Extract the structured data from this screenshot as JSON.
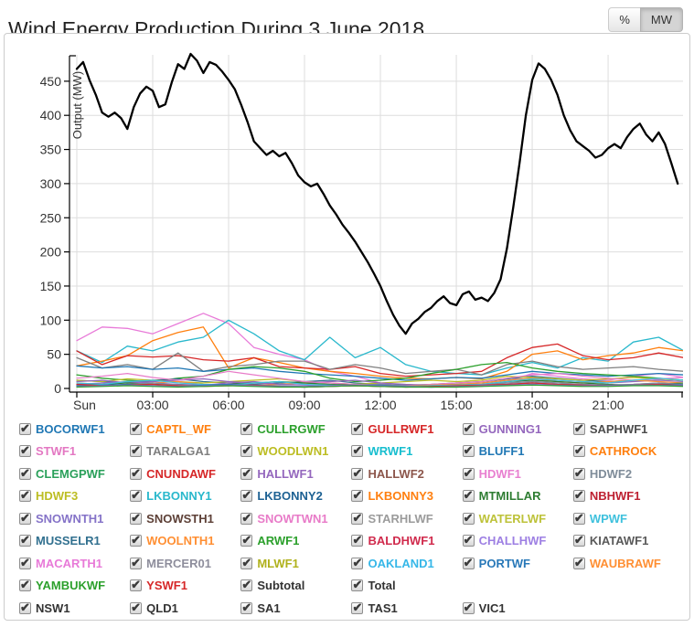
{
  "header": {
    "title": "Wind Energy Production During 3 June 2018",
    "unit_toggle": {
      "options": [
        "%",
        "MW"
      ],
      "selected": "MW"
    }
  },
  "chart_data": {
    "type": "line",
    "title": "Wind Energy Production During 3 June 2018",
    "xlabel": "",
    "ylabel": "Output (MW)",
    "ylim": [
      0,
      500
    ],
    "yticks": [
      0,
      50,
      100,
      150,
      200,
      250,
      300,
      350,
      400,
      450
    ],
    "xticks": [
      {
        "label": "Sun",
        "hour": 0
      },
      {
        "label": "03:00",
        "hour": 3
      },
      {
        "label": "06:00",
        "hour": 6
      },
      {
        "label": "09:00",
        "hour": 9
      },
      {
        "label": "12:00",
        "hour": 12
      },
      {
        "label": "15:00",
        "hour": 15
      },
      {
        "label": "18:00",
        "hour": 18
      },
      {
        "label": "21:00",
        "hour": 21
      }
    ],
    "xlim_hours": [
      0,
      24
    ],
    "grid": true,
    "legend_position": "checkbox grid below chart",
    "series": [
      {
        "name": "MACARTH1",
        "color": "#e87ad8",
        "width": 1.3,
        "x_start": 0,
        "x_step": 1,
        "values": [
          70,
          90,
          88,
          80,
          95,
          110,
          95,
          60,
          50,
          42,
          25,
          18,
          8,
          2,
          2,
          2,
          3,
          10,
          22,
          18,
          14,
          12,
          18,
          22,
          16
        ]
      },
      {
        "name": "LKBONNY1",
        "color": "#29b8cc",
        "width": 1.3,
        "x_start": 0,
        "x_step": 1,
        "values": [
          55,
          38,
          62,
          55,
          68,
          75,
          100,
          80,
          55,
          42,
          75,
          45,
          60,
          35,
          25,
          22,
          20,
          30,
          38,
          30,
          45,
          40,
          68,
          75,
          55
        ]
      },
      {
        "name": "CAPTL_WF",
        "color": "#ff7f0e",
        "width": 1.3,
        "x_start": 0,
        "x_step": 1,
        "values": [
          33,
          40,
          48,
          70,
          82,
          90,
          30,
          45,
          38,
          30,
          25,
          22,
          18,
          15,
          14,
          16,
          14,
          25,
          50,
          55,
          42,
          48,
          52,
          60,
          55
        ]
      },
      {
        "name": "GULLRWF1",
        "color": "#d62728",
        "width": 1.3,
        "x_start": 0,
        "x_step": 1,
        "values": [
          55,
          35,
          48,
          46,
          48,
          42,
          40,
          45,
          32,
          30,
          28,
          32,
          22,
          18,
          20,
          22,
          25,
          45,
          60,
          65,
          48,
          42,
          45,
          52,
          45
        ]
      },
      {
        "name": "TARALGA1",
        "color": "#7f7f7f",
        "width": 1.3,
        "x_start": 0,
        "x_step": 1,
        "values": [
          45,
          30,
          35,
          28,
          52,
          25,
          32,
          35,
          40,
          40,
          28,
          35,
          30,
          22,
          25,
          28,
          20,
          35,
          40,
          32,
          28,
          30,
          32,
          28,
          25
        ]
      },
      {
        "name": "BOCORWF1",
        "color": "#1f77b4",
        "width": 1.3,
        "x_start": 0,
        "x_step": 1,
        "values": [
          33,
          30,
          32,
          28,
          30,
          25,
          28,
          30,
          25,
          22,
          20,
          18,
          15,
          12,
          14,
          16,
          15,
          20,
          25,
          22,
          20,
          18,
          20,
          22,
          20
        ]
      },
      {
        "name": "ARWF1",
        "color": "#2ca02c",
        "width": 1.3,
        "x_start": 0,
        "x_step": 1,
        "values": [
          20,
          15,
          12,
          10,
          15,
          18,
          28,
          32,
          30,
          25,
          15,
          10,
          12,
          15,
          22,
          28,
          35,
          38,
          30,
          25,
          22,
          20,
          18,
          15,
          12
        ]
      },
      {
        "name": "MUSSELR1",
        "color": "#31708f",
        "width": 1.2,
        "x_start": 0,
        "x_step": 1,
        "values": [
          12,
          10,
          8,
          12,
          14,
          10,
          8,
          6,
          8,
          10,
          12,
          8,
          6,
          5,
          6,
          8,
          10,
          14,
          18,
          15,
          12,
          10,
          12,
          14,
          12
        ]
      },
      {
        "name": "WOODLWN1",
        "color": "#bcbd22",
        "width": 1.2,
        "x_start": 0,
        "x_step": 1,
        "values": [
          12,
          10,
          14,
          12,
          10,
          8,
          10,
          12,
          14,
          10,
          8,
          6,
          8,
          10,
          12,
          10,
          12,
          18,
          16,
          14,
          12,
          14,
          16,
          14,
          12
        ]
      },
      {
        "name": "GUNNING1",
        "color": "#9467bd",
        "width": 1.2,
        "x_start": 0,
        "x_step": 1,
        "values": [
          10,
          12,
          8,
          10,
          12,
          14,
          10,
          8,
          6,
          8,
          10,
          12,
          8,
          6,
          5,
          6,
          8,
          12,
          15,
          12,
          10,
          8,
          10,
          12,
          10
        ]
      },
      {
        "name": "SNOWTWN1",
        "color": "#e87bc8",
        "width": 1.2,
        "x_start": 0,
        "x_step": 1,
        "values": [
          15,
          18,
          22,
          16,
          12,
          18,
          25,
          20,
          15,
          10,
          8,
          6,
          5,
          4,
          6,
          8,
          10,
          15,
          20,
          22,
          18,
          15,
          12,
          14,
          16
        ]
      },
      {
        "name": "WOOLNTH1",
        "color": "#ff8f33",
        "width": 1.2,
        "x_start": 0,
        "x_step": 1,
        "values": [
          8,
          6,
          5,
          8,
          10,
          6,
          5,
          4,
          6,
          8,
          5,
          4,
          3,
          4,
          5,
          6,
          8,
          12,
          15,
          10,
          8,
          10,
          12,
          10,
          8
        ]
      },
      {
        "name": "HALLWF1",
        "color": "#9467bd",
        "width": 1.2,
        "x_start": 0,
        "x_step": 1,
        "values": [
          6,
          8,
          10,
          8,
          6,
          5,
          8,
          10,
          6,
          5,
          4,
          5,
          6,
          4,
          3,
          4,
          5,
          8,
          10,
          8,
          6,
          5,
          6,
          8,
          6
        ]
      },
      {
        "name": "MTMILLAR",
        "color": "#2e7d32",
        "width": 1.2,
        "x_start": 0,
        "x_step": 1,
        "values": [
          5,
          6,
          8,
          6,
          5,
          4,
          6,
          8,
          10,
          8,
          6,
          5,
          4,
          3,
          4,
          5,
          6,
          10,
          12,
          10,
          8,
          6,
          5,
          6,
          8
        ]
      },
      {
        "name": "WPWF",
        "color": "#3fc1dd",
        "width": 1.2,
        "x_start": 0,
        "x_step": 1,
        "values": [
          8,
          6,
          10,
          12,
          8,
          6,
          5,
          8,
          10,
          6,
          5,
          4,
          3,
          3,
          4,
          5,
          6,
          10,
          14,
          12,
          10,
          8,
          12,
          15,
          12
        ]
      },
      {
        "name": "HDWF2",
        "color": "#7f8c99",
        "width": 1.2,
        "x_start": 0,
        "x_step": 1,
        "values": [
          5,
          4,
          6,
          8,
          5,
          4,
          6,
          5,
          4,
          3,
          4,
          5,
          6,
          4,
          3,
          4,
          5,
          8,
          10,
          8,
          6,
          5,
          6,
          8,
          6
        ]
      },
      {
        "name": "BLUFF1",
        "color": "#1f77b4",
        "width": 1.2,
        "x_start": 0,
        "x_step": 1,
        "values": [
          4,
          5,
          6,
          4,
          3,
          5,
          6,
          4,
          3,
          2,
          3,
          4,
          5,
          3,
          2,
          3,
          4,
          6,
          8,
          6,
          5,
          4,
          5,
          6,
          5
        ]
      },
      {
        "name": "CNUNDAWF",
        "color": "#d62728",
        "width": 1.2,
        "x_start": 0,
        "x_step": 1,
        "values": [
          6,
          4,
          5,
          6,
          4,
          3,
          4,
          5,
          3,
          2,
          3,
          4,
          3,
          2,
          3,
          4,
          5,
          6,
          8,
          6,
          5,
          4,
          5,
          6,
          4
        ]
      },
      {
        "name": "SNOWNTH1",
        "color": "#8573c8",
        "width": 1.2,
        "x_start": 0,
        "x_step": 1,
        "values": [
          3,
          4,
          5,
          4,
          3,
          4,
          5,
          4,
          3,
          3,
          4,
          5,
          4,
          3,
          2,
          3,
          4,
          5,
          6,
          5,
          4,
          4,
          5,
          5,
          4
        ]
      },
      {
        "name": "YAMBUKWF",
        "color": "#2ca02c",
        "width": 1.2,
        "x_start": 0,
        "x_step": 1,
        "values": [
          2,
          3,
          4,
          3,
          2,
          3,
          4,
          3,
          2,
          2,
          3,
          4,
          3,
          2,
          2,
          2,
          3,
          4,
          5,
          4,
          3,
          3,
          4,
          4,
          3
        ]
      },
      {
        "name": "Total",
        "color": "#000000",
        "width": 2.3,
        "x_start": 0,
        "x_step": 0.25,
        "values": [
          468,
          478,
          452,
          430,
          404,
          398,
          404,
          396,
          380,
          412,
          432,
          442,
          436,
          412,
          416,
          448,
          475,
          468,
          490,
          480,
          462,
          478,
          474,
          464,
          452,
          438,
          415,
          390,
          362,
          352,
          342,
          348,
          340,
          345,
          330,
          312,
          302,
          296,
          300,
          285,
          268,
          255,
          240,
          228,
          215,
          200,
          185,
          168,
          150,
          128,
          108,
          92,
          80,
          95,
          102,
          112,
          118,
          128,
          135,
          125,
          122,
          138,
          142,
          130,
          133,
          128,
          140,
          160,
          205,
          265,
          330,
          400,
          452,
          476,
          468,
          452,
          430,
          400,
          378,
          362,
          355,
          348,
          338,
          342,
          352,
          358,
          352,
          368,
          380,
          388,
          372,
          362,
          375,
          358,
          330,
          300
        ]
      }
    ]
  },
  "legend": {
    "rows": [
      {
        "items": [
          {
            "label": "BOCORWF1",
            "color": "#1f77b4",
            "checked": true
          },
          {
            "label": "CAPTL_WF",
            "color": "#ff7f0e",
            "checked": true
          },
          {
            "label": "CULLRGWF",
            "color": "#2ca02c",
            "checked": true
          },
          {
            "label": "GULLRWF1",
            "color": "#d62728",
            "checked": true
          },
          {
            "label": "GUNNING1",
            "color": "#9467bd",
            "checked": true
          },
          {
            "label": "SAPHWF1",
            "color": "#4d4d4d",
            "checked": true
          }
        ]
      },
      {
        "items": [
          {
            "label": "STWF1",
            "color": "#e377c2",
            "checked": true
          },
          {
            "label": "TARALGA1",
            "color": "#7f7f7f",
            "checked": true
          },
          {
            "label": "WOODLWN1",
            "color": "#bcbd22",
            "checked": true
          },
          {
            "label": "WRWF1",
            "color": "#17becf",
            "checked": true
          },
          {
            "label": "BLUFF1",
            "color": "#1f77b4",
            "checked": true
          },
          {
            "label": "CATHROCK",
            "color": "#ff7f0e",
            "checked": true
          }
        ]
      },
      {
        "items": [
          {
            "label": "CLEMGPWF",
            "color": "#2aa05a",
            "checked": true
          },
          {
            "label": "CNUNDAWF",
            "color": "#d62728",
            "checked": true
          },
          {
            "label": "HALLWF1",
            "color": "#9467bd",
            "checked": true
          },
          {
            "label": "HALLWF2",
            "color": "#8c564b",
            "checked": true
          },
          {
            "label": "HDWF1",
            "color": "#e87fd0",
            "checked": true
          },
          {
            "label": "HDWF2",
            "color": "#7f8c99",
            "checked": true
          }
        ]
      },
      {
        "items": [
          {
            "label": "HDWF3",
            "color": "#bcbd22",
            "checked": true
          },
          {
            "label": "LKBONNY1",
            "color": "#29b8cc",
            "checked": true
          },
          {
            "label": "LKBONNY2",
            "color": "#1d6193",
            "checked": true
          },
          {
            "label": "LKBONNY3",
            "color": "#ff7f0e",
            "checked": true
          },
          {
            "label": "MTMILLAR",
            "color": "#2e7d32",
            "checked": true
          },
          {
            "label": "NBHWF1",
            "color": "#bd2031",
            "checked": true
          }
        ]
      },
      {
        "items": [
          {
            "label": "SNOWNTH1",
            "color": "#8573c8",
            "checked": true
          },
          {
            "label": "SNOWSTH1",
            "color": "#5d4037",
            "checked": true
          },
          {
            "label": "SNOWTWN1",
            "color": "#e87bc8",
            "checked": true
          },
          {
            "label": "STARHLWF",
            "color": "#9b9b9b",
            "checked": true
          },
          {
            "label": "WATERLWF",
            "color": "#bdc239",
            "checked": true
          },
          {
            "label": "WPWF",
            "color": "#3fc1dd",
            "checked": true
          }
        ]
      },
      {
        "items": [
          {
            "label": "MUSSELR1",
            "color": "#31708f",
            "checked": true
          },
          {
            "label": "WOOLNTH1",
            "color": "#ff8f33",
            "checked": true
          },
          {
            "label": "ARWF1",
            "color": "#2ca02c",
            "checked": true
          },
          {
            "label": "BALDHWF1",
            "color": "#d02a4c",
            "checked": true
          },
          {
            "label": "CHALLHWF",
            "color": "#9d7fe3",
            "checked": true
          },
          {
            "label": "KIATAWF1",
            "color": "#5a5a5a",
            "checked": true
          }
        ]
      },
      {
        "items": [
          {
            "label": "MACARTH1",
            "color": "#e87ad8",
            "checked": true
          },
          {
            "label": "MERCER01",
            "color": "#8e8e9c",
            "checked": true
          },
          {
            "label": "MLWF1",
            "color": "#b0b11c",
            "checked": true
          },
          {
            "label": "OAKLAND1",
            "color": "#36b7e8",
            "checked": true
          },
          {
            "label": "PORTWF",
            "color": "#2878b8",
            "checked": true
          },
          {
            "label": "WAUBRAWF",
            "color": "#ff8f33",
            "checked": true
          }
        ]
      },
      {
        "items": [
          {
            "label": "YAMBUKWF",
            "color": "#2ca02c",
            "checked": true
          },
          {
            "label": "YSWF1",
            "color": "#d62728",
            "checked": true
          },
          {
            "label": "Subtotal",
            "color": "#333333",
            "checked": true
          },
          {
            "label": "Total",
            "color": "#333333",
            "checked": true
          }
        ]
      },
      {
        "items": [
          {
            "label": "NSW1",
            "color": "#333333",
            "checked": true
          },
          {
            "label": "QLD1",
            "color": "#333333",
            "checked": true
          },
          {
            "label": "SA1",
            "color": "#333333",
            "checked": true
          },
          {
            "label": "TAS1",
            "color": "#333333",
            "checked": true
          },
          {
            "label": "VIC1",
            "color": "#333333",
            "checked": true
          }
        ]
      }
    ]
  }
}
